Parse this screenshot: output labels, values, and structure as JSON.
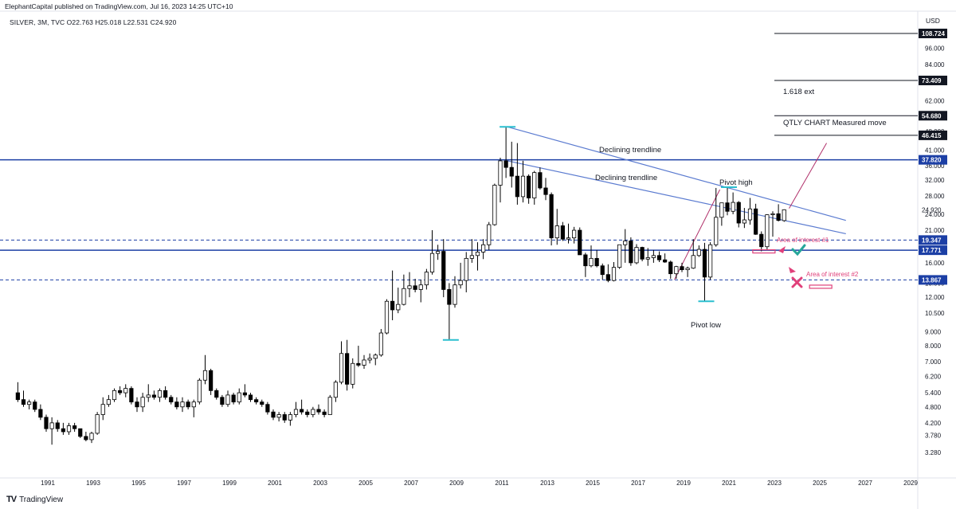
{
  "header": {
    "publisher": "ElephantCapital published on TradingView.com, Jul 16, 2023 14:25 UTC+10",
    "symbol_line": "SILVER, 3M, TVC  O22.763  H25.018  L22.531  C24.920",
    "currency": "USD"
  },
  "footer": {
    "brand": "TradingView"
  },
  "colors": {
    "candle_up": "#ffffff",
    "candle_down": "#000000",
    "horizontal_line": "#1c3fa5",
    "trendline": "#5b7bd0",
    "pink": "#e0407a",
    "cyan": "#2bbfcf",
    "green": "#26a69a"
  },
  "chart_data": {
    "type": "candlestick",
    "instrument": "SILVER",
    "interval": "3M",
    "scale": "log",
    "ylim": [
      3.0,
      125.0
    ],
    "xlim": [
      1989.6,
      2029.8
    ],
    "y_ticks": [
      "3.280",
      "3.780",
      "4.200",
      "4.800",
      "5.400",
      "6.200",
      "7.000",
      "8.000",
      "9.000",
      "10.500",
      "12.000",
      "13.500",
      "16.000",
      "18.000",
      "21.000",
      "24.000",
      "28.000",
      "32.000",
      "36.000",
      "41.000",
      "48.000",
      "54.000",
      "62.000",
      "72.000",
      "84.000",
      "96.000"
    ],
    "x_ticks": [
      "1991",
      "1993",
      "1995",
      "1997",
      "1999",
      "2001",
      "2003",
      "2005",
      "2007",
      "2009",
      "2011",
      "2013",
      "2015",
      "2017",
      "2019",
      "2021",
      "2023",
      "2025",
      "2027",
      "2029"
    ],
    "last_price": "24.920",
    "candles": [
      [
        1989.75,
        5.4,
        5.9,
        5.0,
        5.1
      ],
      [
        1990.0,
        5.1,
        5.5,
        4.8,
        4.9
      ],
      [
        1990.25,
        4.9,
        5.1,
        4.7,
        5.0
      ],
      [
        1990.5,
        5.0,
        5.1,
        4.6,
        4.7
      ],
      [
        1990.75,
        4.7,
        4.9,
        4.3,
        4.4
      ],
      [
        1991.0,
        4.4,
        4.5,
        3.9,
        4.0
      ],
      [
        1991.25,
        4.0,
        4.4,
        3.5,
        4.2
      ],
      [
        1991.5,
        4.2,
        4.3,
        3.9,
        4.0
      ],
      [
        1991.75,
        4.0,
        4.2,
        3.8,
        3.9
      ],
      [
        1992.0,
        3.9,
        4.2,
        3.8,
        4.1
      ],
      [
        1992.25,
        4.1,
        4.2,
        3.9,
        4.0
      ],
      [
        1992.5,
        4.0,
        4.0,
        3.7,
        3.75
      ],
      [
        1992.75,
        3.75,
        3.9,
        3.6,
        3.65
      ],
      [
        1993.0,
        3.65,
        3.9,
        3.55,
        3.85
      ],
      [
        1993.25,
        3.85,
        4.6,
        3.8,
        4.5
      ],
      [
        1993.5,
        4.5,
        5.2,
        4.3,
        4.9
      ],
      [
        1993.75,
        4.9,
        5.3,
        4.8,
        5.1
      ],
      [
        1994.0,
        5.1,
        5.6,
        5.0,
        5.5
      ],
      [
        1994.25,
        5.5,
        5.7,
        5.3,
        5.4
      ],
      [
        1994.5,
        5.4,
        5.8,
        5.2,
        5.6
      ],
      [
        1994.75,
        5.6,
        5.7,
        4.9,
        5.0
      ],
      [
        1995.0,
        5.0,
        5.2,
        4.6,
        4.8
      ],
      [
        1995.25,
        4.8,
        5.4,
        4.6,
        5.2
      ],
      [
        1995.5,
        5.2,
        5.8,
        5.0,
        5.3
      ],
      [
        1995.75,
        5.3,
        5.5,
        5.1,
        5.2
      ],
      [
        1996.0,
        5.2,
        5.6,
        5.0,
        5.5
      ],
      [
        1996.25,
        5.5,
        5.7,
        5.1,
        5.2
      ],
      [
        1996.5,
        5.2,
        5.3,
        4.9,
        5.0
      ],
      [
        1996.75,
        5.0,
        5.2,
        4.7,
        4.8
      ],
      [
        1997.0,
        4.8,
        5.2,
        4.6,
        5.0
      ],
      [
        1997.25,
        5.0,
        5.1,
        4.7,
        4.8
      ],
      [
        1997.5,
        4.8,
        5.1,
        4.4,
        5.0
      ],
      [
        1997.75,
        5.0,
        6.1,
        4.9,
        6.0
      ],
      [
        1998.0,
        6.0,
        7.4,
        5.8,
        6.5
      ],
      [
        1998.25,
        6.5,
        6.6,
        5.3,
        5.5
      ],
      [
        1998.5,
        5.5,
        5.6,
        5.1,
        5.2
      ],
      [
        1998.75,
        5.2,
        5.3,
        4.8,
        4.9
      ],
      [
        1999.0,
        4.9,
        5.5,
        4.8,
        5.3
      ],
      [
        1999.25,
        5.3,
        5.4,
        4.9,
        5.0
      ],
      [
        1999.5,
        5.0,
        5.6,
        4.9,
        5.4
      ],
      [
        1999.75,
        5.4,
        5.8,
        5.2,
        5.3
      ],
      [
        2000.0,
        5.3,
        5.4,
        5.0,
        5.1
      ],
      [
        2000.25,
        5.1,
        5.2,
        4.9,
        5.0
      ],
      [
        2000.5,
        5.0,
        5.1,
        4.8,
        4.9
      ],
      [
        2000.75,
        4.9,
        5.0,
        4.5,
        4.6
      ],
      [
        2001.0,
        4.6,
        4.7,
        4.3,
        4.4
      ],
      [
        2001.25,
        4.4,
        4.6,
        4.25,
        4.5
      ],
      [
        2001.5,
        4.5,
        4.6,
        4.2,
        4.3
      ],
      [
        2001.75,
        4.3,
        4.6,
        4.1,
        4.5
      ],
      [
        2002.0,
        4.5,
        5.0,
        4.4,
        4.7
      ],
      [
        2002.25,
        4.7,
        5.1,
        4.5,
        4.6
      ],
      [
        2002.5,
        4.6,
        4.7,
        4.4,
        4.5
      ],
      [
        2002.75,
        4.5,
        4.8,
        4.4,
        4.7
      ],
      [
        2003.0,
        4.7,
        4.9,
        4.5,
        4.6
      ],
      [
        2003.25,
        4.6,
        4.7,
        4.4,
        4.5
      ],
      [
        2003.5,
        4.5,
        5.3,
        4.5,
        5.2
      ],
      [
        2003.75,
        5.2,
        6.0,
        5.0,
        5.9
      ],
      [
        2004.0,
        5.9,
        8.3,
        5.8,
        7.5
      ],
      [
        2004.25,
        7.5,
        8.4,
        5.5,
        5.8
      ],
      [
        2004.5,
        5.8,
        7.2,
        5.6,
        6.9
      ],
      [
        2004.75,
        6.9,
        8.0,
        6.7,
        6.8
      ],
      [
        2005.0,
        6.8,
        7.4,
        6.6,
        7.1
      ],
      [
        2005.25,
        7.1,
        7.5,
        6.9,
        7.2
      ],
      [
        2005.5,
        7.2,
        7.5,
        6.8,
        7.4
      ],
      [
        2005.75,
        7.4,
        9.2,
        7.3,
        8.9
      ],
      [
        2006.0,
        8.9,
        11.8,
        8.8,
        11.6
      ],
      [
        2006.25,
        11.6,
        15.0,
        9.9,
        10.8
      ],
      [
        2006.5,
        10.8,
        13.0,
        10.5,
        11.3
      ],
      [
        2006.75,
        11.3,
        14.5,
        11.2,
        12.9
      ],
      [
        2007.0,
        12.9,
        14.8,
        12.0,
        13.2
      ],
      [
        2007.25,
        13.2,
        14.0,
        12.5,
        12.8
      ],
      [
        2007.5,
        12.8,
        13.9,
        11.5,
        13.3
      ],
      [
        2007.75,
        13.3,
        15.2,
        12.8,
        14.8
      ],
      [
        2008.0,
        14.8,
        21.0,
        14.5,
        17.3
      ],
      [
        2008.25,
        17.3,
        18.6,
        16.4,
        17.6
      ],
      [
        2008.5,
        17.6,
        19.5,
        12.0,
        12.8
      ],
      [
        2008.75,
        12.8,
        13.5,
        8.4,
        11.3
      ],
      [
        2009.0,
        11.3,
        14.3,
        11.0,
        13.3
      ],
      [
        2009.25,
        13.3,
        16.0,
        12.9,
        13.8
      ],
      [
        2009.5,
        13.8,
        17.5,
        12.5,
        16.6
      ],
      [
        2009.75,
        16.6,
        19.5,
        16.0,
        17.0
      ],
      [
        2010.0,
        17.0,
        19.0,
        15.0,
        17.5
      ],
      [
        2010.25,
        17.5,
        19.5,
        16.5,
        18.6
      ],
      [
        2010.5,
        18.6,
        22.5,
        17.8,
        22.0
      ],
      [
        2010.75,
        22.0,
        31.0,
        21.8,
        30.6
      ],
      [
        2011.0,
        30.6,
        38.5,
        26.5,
        37.5
      ],
      [
        2011.25,
        37.5,
        49.8,
        32.5,
        35.5
      ],
      [
        2011.5,
        35.5,
        44.0,
        30.0,
        33.0
      ],
      [
        2011.75,
        33.0,
        43.5,
        26.0,
        27.8
      ],
      [
        2012.0,
        27.8,
        37.5,
        26.5,
        33.0
      ],
      [
        2012.25,
        33.0,
        33.5,
        26.2,
        27.5
      ],
      [
        2012.5,
        27.5,
        34.5,
        26.0,
        34.0
      ],
      [
        2012.75,
        34.0,
        35.5,
        29.5,
        29.9
      ],
      [
        2013.0,
        29.9,
        32.5,
        27.0,
        28.3
      ],
      [
        2013.25,
        28.3,
        28.8,
        18.5,
        19.7
      ],
      [
        2013.5,
        19.7,
        25.1,
        18.6,
        21.8
      ],
      [
        2013.75,
        21.8,
        22.5,
        19.2,
        19.5
      ],
      [
        2014.0,
        19.5,
        22.2,
        18.8,
        19.7
      ],
      [
        2014.25,
        19.7,
        21.6,
        18.8,
        21.0
      ],
      [
        2014.5,
        21.0,
        21.5,
        17.2,
        17.1
      ],
      [
        2014.75,
        17.1,
        17.4,
        14.2,
        15.6
      ],
      [
        2015.0,
        15.6,
        18.5,
        15.4,
        16.6
      ],
      [
        2015.25,
        16.6,
        17.8,
        15.4,
        15.6
      ],
      [
        2015.5,
        15.6,
        15.9,
        13.9,
        14.5
      ],
      [
        2015.75,
        14.5,
        15.8,
        13.6,
        13.8
      ],
      [
        2016.0,
        13.8,
        16.1,
        13.7,
        15.4
      ],
      [
        2016.25,
        15.4,
        18.5,
        15.2,
        18.6
      ],
      [
        2016.5,
        18.6,
        21.2,
        16.0,
        19.2
      ],
      [
        2016.75,
        19.2,
        19.8,
        15.6,
        16.0
      ],
      [
        2017.0,
        16.0,
        18.7,
        15.8,
        18.2
      ],
      [
        2017.25,
        18.2,
        18.3,
        16.2,
        16.5
      ],
      [
        2017.5,
        16.5,
        18.1,
        15.6,
        16.7
      ],
      [
        2017.75,
        16.7,
        17.8,
        16.0,
        17.0
      ],
      [
        2018.0,
        17.0,
        17.6,
        16.1,
        16.4
      ],
      [
        2018.25,
        16.4,
        17.3,
        16.0,
        16.1
      ],
      [
        2018.5,
        16.1,
        16.3,
        14.0,
        14.6
      ],
      [
        2018.75,
        14.6,
        15.6,
        14.0,
        15.5
      ],
      [
        2019.0,
        15.5,
        16.0,
        14.8,
        15.1
      ],
      [
        2019.25,
        15.1,
        15.5,
        14.2,
        15.3
      ],
      [
        2019.5,
        15.3,
        19.5,
        15.2,
        17.0
      ],
      [
        2019.75,
        17.0,
        18.5,
        16.8,
        17.9
      ],
      [
        2020.0,
        17.9,
        18.9,
        11.6,
        14.2
      ],
      [
        2020.25,
        14.2,
        19.0,
        13.9,
        18.6
      ],
      [
        2020.5,
        18.6,
        29.9,
        18.3,
        23.4
      ],
      [
        2020.75,
        23.4,
        26.0,
        21.8,
        26.4
      ],
      [
        2021.0,
        26.4,
        30.1,
        23.8,
        24.6
      ],
      [
        2021.25,
        24.6,
        28.8,
        24.0,
        26.5
      ],
      [
        2021.5,
        26.5,
        26.8,
        21.5,
        22.3
      ],
      [
        2021.75,
        22.3,
        25.3,
        21.4,
        22.9
      ],
      [
        2022.0,
        22.9,
        27.5,
        22.0,
        25.1
      ],
      [
        2022.25,
        25.1,
        26.2,
        20.2,
        20.3
      ],
      [
        2022.5,
        20.3,
        20.8,
        17.6,
        18.3
      ],
      [
        2022.75,
        18.3,
        24.0,
        17.8,
        23.9
      ],
      [
        2023.0,
        23.9,
        24.6,
        19.9,
        24.1
      ],
      [
        2023.25,
        24.1,
        26.1,
        22.6,
        22.8
      ],
      [
        2023.5,
        22.763,
        25.018,
        22.531,
        24.92
      ]
    ],
    "annotations": {
      "lines_solid": [
        {
          "price": 108.724,
          "label": "108.724"
        },
        {
          "price": 73.409,
          "label": "73.409"
        },
        {
          "price": 54.68,
          "label": "54.680"
        },
        {
          "price": 46.415,
          "label": "46.415"
        },
        {
          "price": 37.82,
          "label": "37.820"
        },
        {
          "price": 17.771,
          "label": "17.771"
        }
      ],
      "lines_dashed": [
        {
          "price": 19.347,
          "label": "19.347"
        },
        {
          "price": 13.867,
          "label": "13.867"
        }
      ],
      "texts": {
        "ext": "1.618 ext",
        "measured": "QTLY CHART Measured move",
        "trend1": "Declining trendline",
        "trend2": "Declining trendline",
        "pivot_high": "Pivot high",
        "pivot_low": "Pivot low",
        "aoi1": "Area of interest #1",
        "aoi2": "Area of interest #2"
      }
    }
  }
}
